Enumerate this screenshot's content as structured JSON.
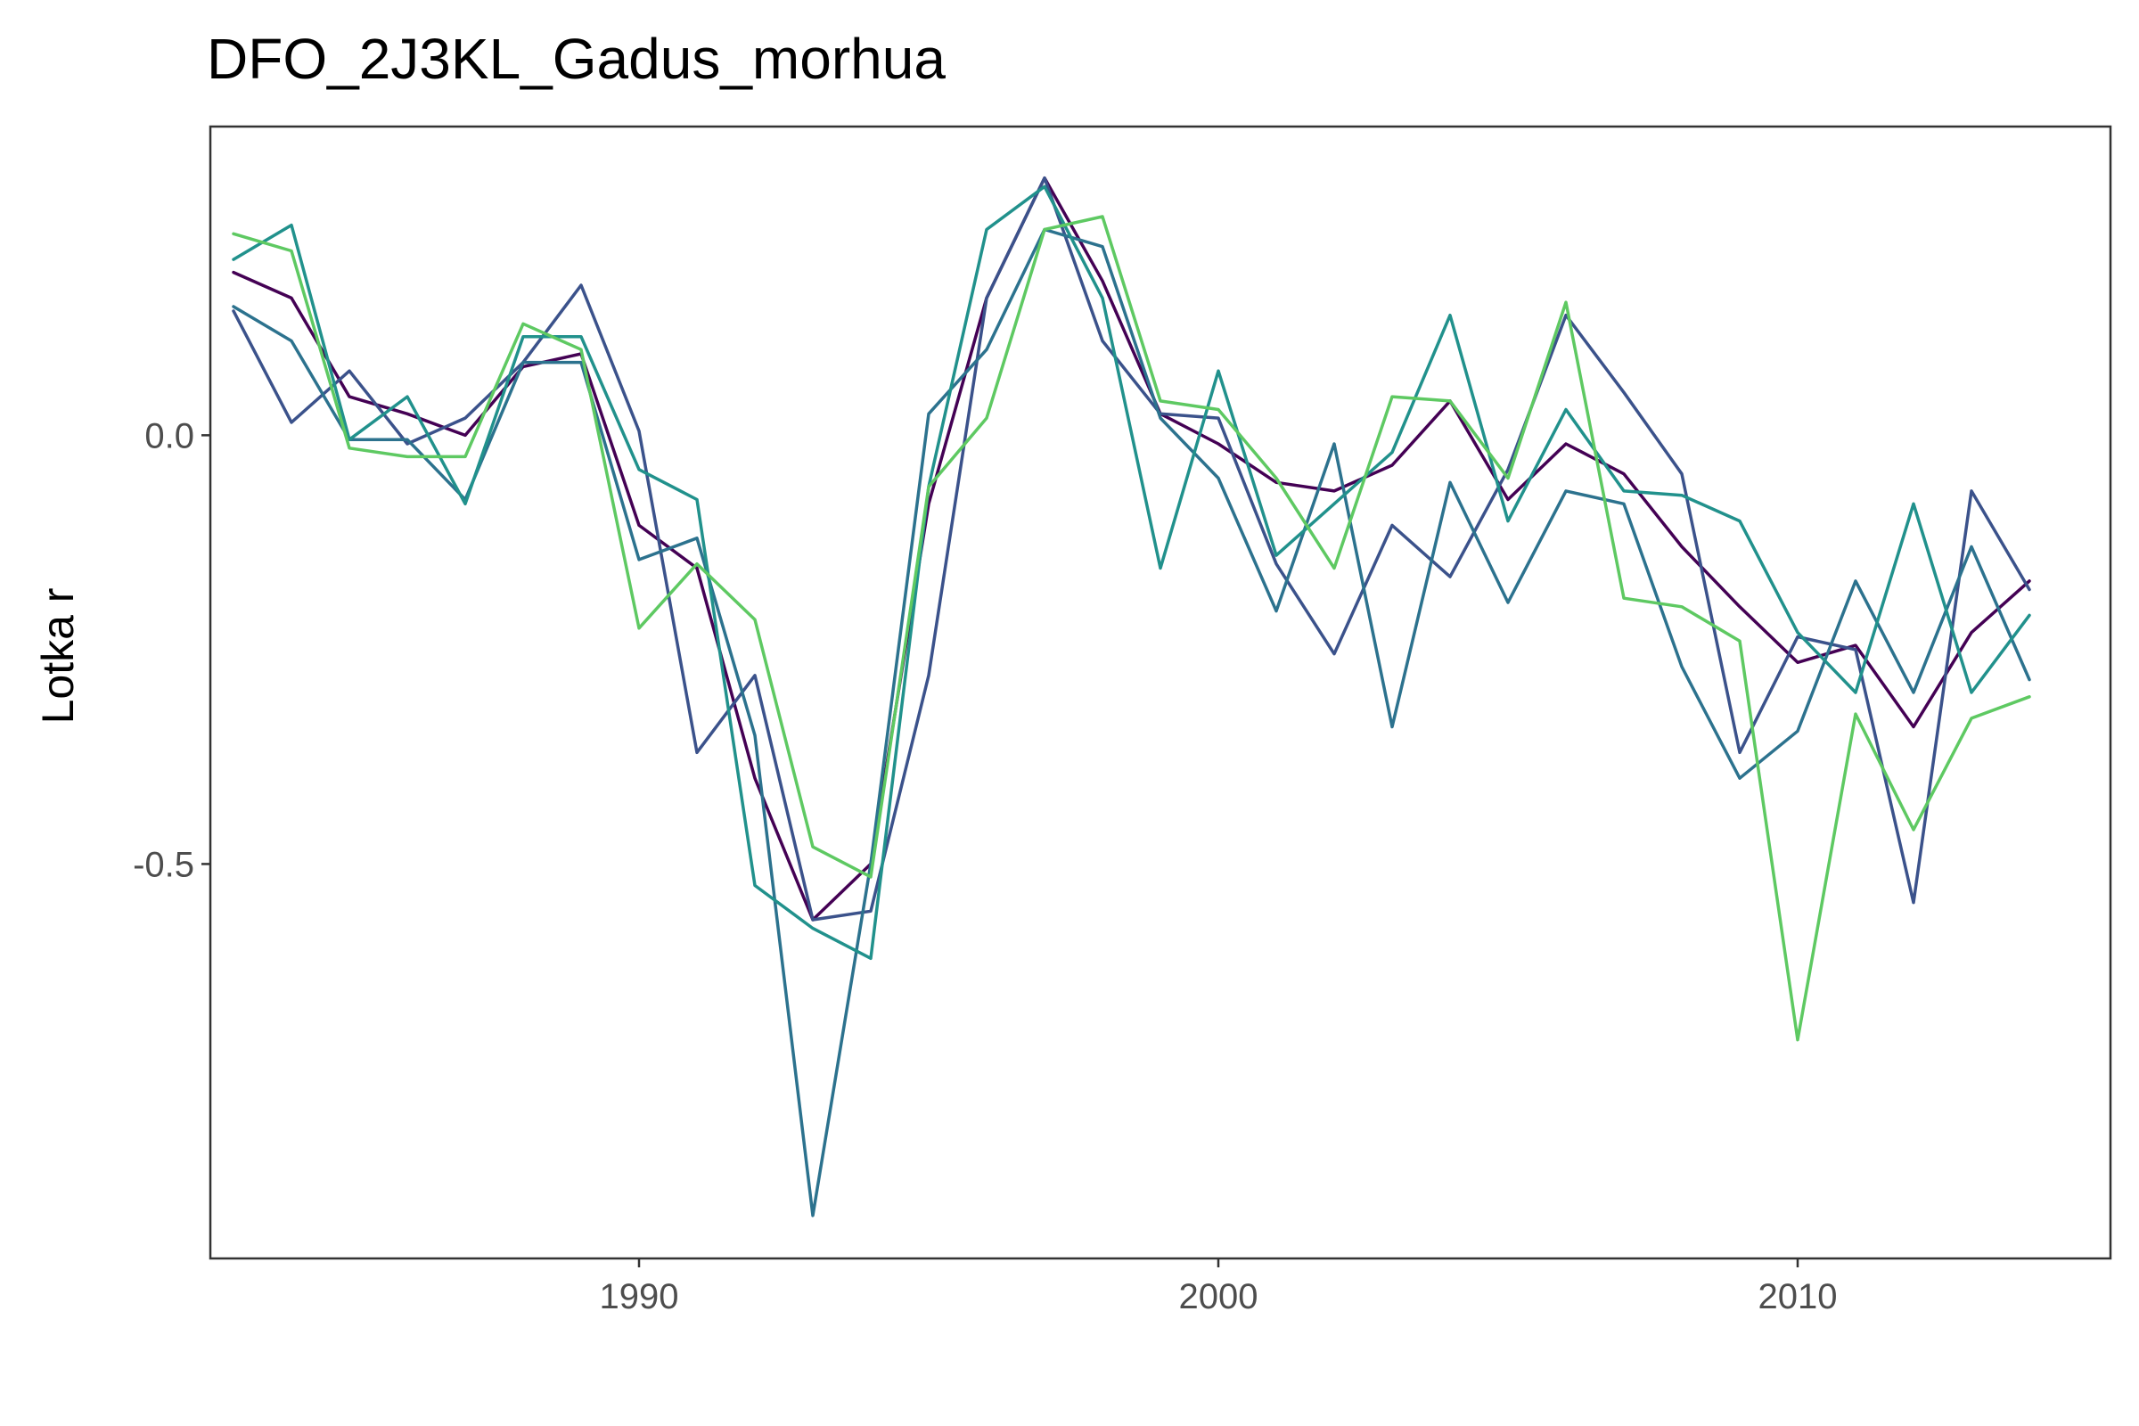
{
  "chart_data": {
    "type": "line",
    "title": "DFO_2J3KL_Gadus_morhua",
    "xlabel": "",
    "ylabel": "Lotka r",
    "xlim": [
      1982.6,
      2015.4
    ],
    "ylim": [
      -0.96,
      0.36
    ],
    "xticks": [
      1990,
      2000,
      2010
    ],
    "xtick_labels": [
      "1990",
      "2000",
      "2010"
    ],
    "yticks": [
      0.0,
      -0.5
    ],
    "ytick_labels": [
      "0.0",
      "-0.5"
    ],
    "grid": false,
    "legend": "none",
    "x": [
      1983,
      1984,
      1985,
      1986,
      1987,
      1988,
      1989,
      1990,
      1991,
      1992,
      1993,
      1994,
      1995,
      1996,
      1997,
      1998,
      1999,
      2000,
      2001,
      2002,
      2003,
      2004,
      2005,
      2006,
      2007,
      2008,
      2009,
      2010,
      2011,
      2012,
      2013,
      2014
    ],
    "series": [
      {
        "color": "#440154",
        "values": [
          0.19,
          0.16,
          0.045,
          0.025,
          0.0,
          0.08,
          0.095,
          -0.105,
          -0.155,
          -0.4,
          -0.565,
          -0.5,
          -0.08,
          0.16,
          0.3,
          0.18,
          0.025,
          -0.01,
          -0.055,
          -0.065,
          -0.035,
          0.04,
          -0.075,
          -0.01,
          -0.045,
          -0.13,
          -0.2,
          -0.265,
          -0.245,
          -0.34,
          -0.23,
          -0.17
        ]
      },
      {
        "color": "#3b528b",
        "values": [
          0.145,
          0.015,
          0.075,
          -0.01,
          0.02,
          0.085,
          0.175,
          0.005,
          -0.37,
          -0.28,
          -0.565,
          -0.555,
          -0.28,
          0.16,
          0.3,
          0.11,
          0.025,
          0.02,
          -0.15,
          -0.255,
          -0.105,
          -0.165,
          -0.04,
          0.14,
          0.05,
          -0.045,
          -0.37,
          -0.235,
          -0.25,
          -0.545,
          -0.065,
          -0.18
        ]
      },
      {
        "color": "#2c728e",
        "values": [
          0.15,
          0.11,
          -0.005,
          -0.005,
          -0.075,
          0.085,
          0.085,
          -0.145,
          -0.12,
          -0.35,
          -0.91,
          -0.5,
          0.025,
          0.1,
          0.24,
          0.22,
          0.02,
          -0.05,
          -0.205,
          -0.01,
          -0.34,
          -0.055,
          -0.195,
          -0.065,
          -0.08,
          -0.27,
          -0.4,
          -0.345,
          -0.17,
          -0.3,
          -0.13,
          -0.285
        ]
      },
      {
        "color": "#21918c",
        "values": [
          0.205,
          0.245,
          -0.005,
          0.045,
          -0.08,
          0.115,
          0.115,
          -0.04,
          -0.075,
          -0.525,
          -0.575,
          -0.61,
          -0.06,
          0.24,
          0.29,
          0.16,
          -0.155,
          0.075,
          -0.14,
          -0.08,
          -0.02,
          0.14,
          -0.1,
          0.03,
          -0.065,
          -0.07,
          -0.1,
          -0.23,
          -0.3,
          -0.08,
          -0.3,
          -0.21
        ]
      },
      {
        "color": "#5ec962",
        "values": [
          0.235,
          0.215,
          -0.015,
          -0.025,
          -0.025,
          0.13,
          0.1,
          -0.225,
          -0.15,
          -0.215,
          -0.48,
          -0.515,
          -0.06,
          0.02,
          0.24,
          0.255,
          0.04,
          0.03,
          -0.05,
          -0.155,
          0.045,
          0.04,
          -0.05,
          0.155,
          -0.19,
          -0.2,
          -0.24,
          -0.705,
          -0.325,
          -0.46,
          -0.33,
          -0.305
        ]
      }
    ]
  }
}
